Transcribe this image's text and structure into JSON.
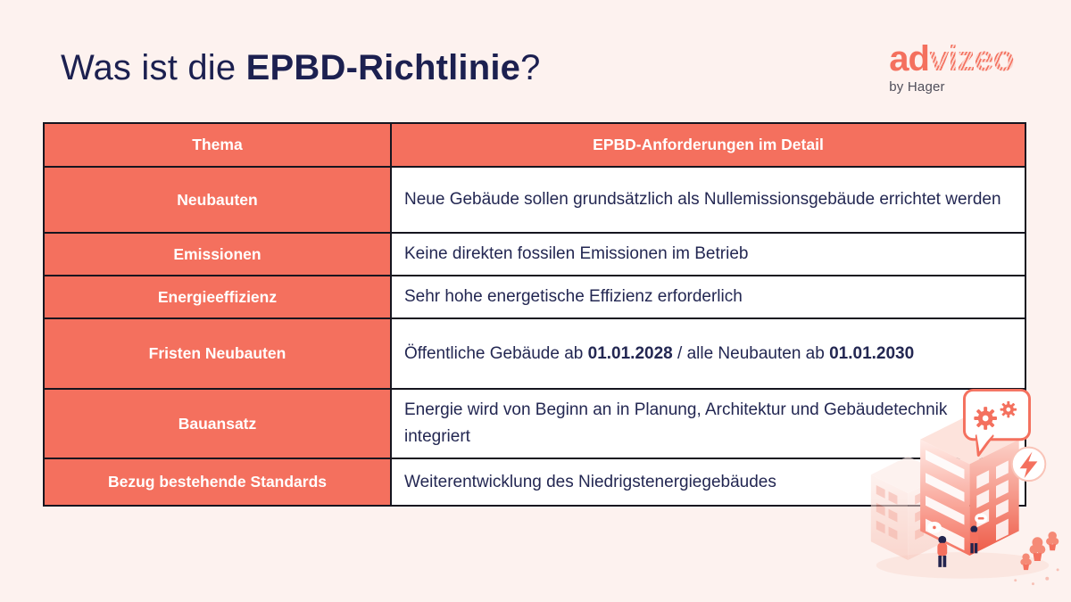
{
  "title": {
    "prefix": "Was ist die ",
    "emphasis": "EPBD-Richtlinie",
    "suffix": "?"
  },
  "logo": {
    "brand_prefix": "ad",
    "brand_suffix": "vizeo",
    "byline": "by Hager"
  },
  "table": {
    "columns": [
      "Thema",
      "EPBD-Anforderungen im Detail"
    ],
    "rows": [
      {
        "thema": "Neubauten",
        "detail": [
          {
            "text": "Neue Gebäude sollen grundsätzlich als Nullemissionsgebäude errichtet werden",
            "bold": false
          }
        ]
      },
      {
        "thema": "Emissionen",
        "detail": [
          {
            "text": "Keine direkten fossilen Emissionen im Betrieb",
            "bold": false
          }
        ]
      },
      {
        "thema": "Energieeffizienz",
        "detail": [
          {
            "text": "Sehr hohe energetische Effizienz erforderlich",
            "bold": false
          }
        ]
      },
      {
        "thema": "Fristen Neubauten",
        "detail": [
          {
            "text": "Öffentliche Gebäude ab ",
            "bold": false
          },
          {
            "text": "01.01.2028",
            "bold": true
          },
          {
            "text": " / alle Neubauten ab ",
            "bold": false
          },
          {
            "text": "01.01.2030",
            "bold": true
          }
        ]
      },
      {
        "thema": "Bauansatz",
        "detail": [
          {
            "text": "Energie wird von Beginn an in Planung, Architektur und Gebäudetechnik integriert",
            "bold": false
          }
        ]
      },
      {
        "thema": "Bezug bestehende Standards",
        "detail": [
          {
            "text": "Weiterentwicklung des Niedrigstenergiegebäudes",
            "bold": false
          }
        ]
      }
    ]
  },
  "colors": {
    "accent_coral": "#F4705E",
    "navy_text": "#1C2050",
    "page_background": "#FDF2EF",
    "table_border": "#15151F",
    "cell_white": "#FFFFFF",
    "byline_gray": "#4F4E5A"
  },
  "illustration": {
    "name": "isometric-coral-buildings"
  }
}
